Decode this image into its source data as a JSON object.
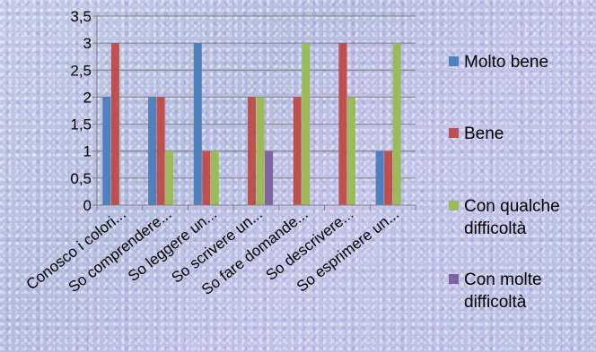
{
  "chart_data": {
    "type": "bar",
    "categories": [
      "Conosco i colori...",
      "So comprendere...",
      "So leggere un...",
      "So scrivere un...",
      "So fare domande...",
      "So descrivere...",
      "So esprimere un..."
    ],
    "series": [
      {
        "name": "Molto bene",
        "color": "#4f81bd",
        "values": [
          2,
          2,
          3,
          0,
          0,
          0,
          1
        ]
      },
      {
        "name": "Bene",
        "color": "#c0504d",
        "values": [
          3,
          2,
          1,
          2,
          2,
          3,
          1
        ]
      },
      {
        "name": "Con qualche difficoltà",
        "color": "#9bbb59",
        "values": [
          0,
          1,
          1,
          2,
          3,
          2,
          3
        ]
      },
      {
        "name": "Con molte difficoltà",
        "color": "#8064a2",
        "values": [
          0,
          0,
          0,
          1,
          0,
          0,
          0
        ]
      }
    ],
    "yticks": [
      "0",
      "0,5",
      "1",
      "1,5",
      "2",
      "2,5",
      "3",
      "3,5"
    ],
    "ylim": [
      0,
      3.5
    ],
    "grid": true,
    "legend_position": "right"
  }
}
